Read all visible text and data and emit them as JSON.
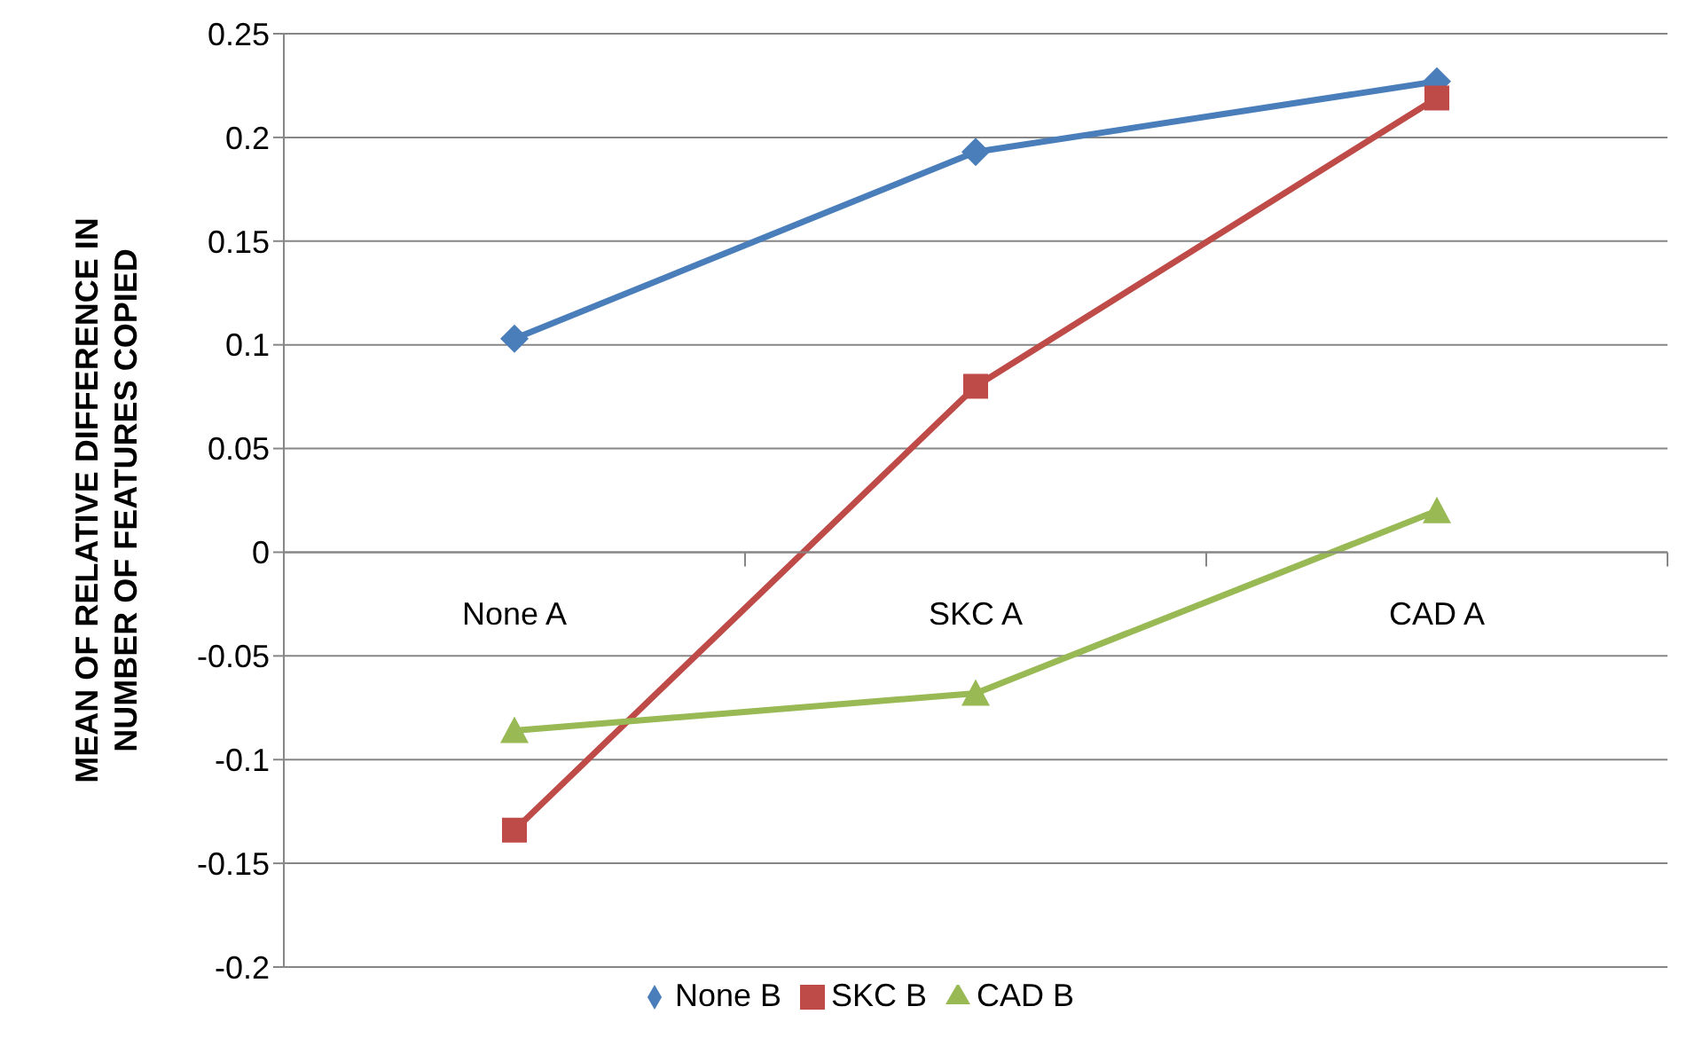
{
  "chart_data": {
    "type": "line",
    "ylabel": "MEAN OF RELATIVE DIFFERENCE IN NUMBER OF FEATURES COPIED",
    "categories": [
      "None A",
      "SKC A",
      "CAD A"
    ],
    "series": [
      {
        "name": "None B",
        "color": "#4a7ebb",
        "marker": "diamond",
        "values": [
          0.103,
          0.193,
          0.227
        ]
      },
      {
        "name": "SKC B",
        "color": "#be4b48",
        "marker": "square",
        "values": [
          -0.134,
          0.08,
          0.219
        ]
      },
      {
        "name": "CAD B",
        "color": "#98b954",
        "marker": "triangle",
        "values": [
          -0.086,
          -0.068,
          0.02
        ]
      }
    ],
    "ylim": [
      -0.2,
      0.25
    ],
    "yticks": [
      -0.2,
      -0.15,
      -0.1,
      -0.05,
      0,
      0.05,
      0.1,
      0.15,
      0.2,
      0.25
    ],
    "grid": "y",
    "legend": "bottom",
    "line_style": "solid"
  }
}
